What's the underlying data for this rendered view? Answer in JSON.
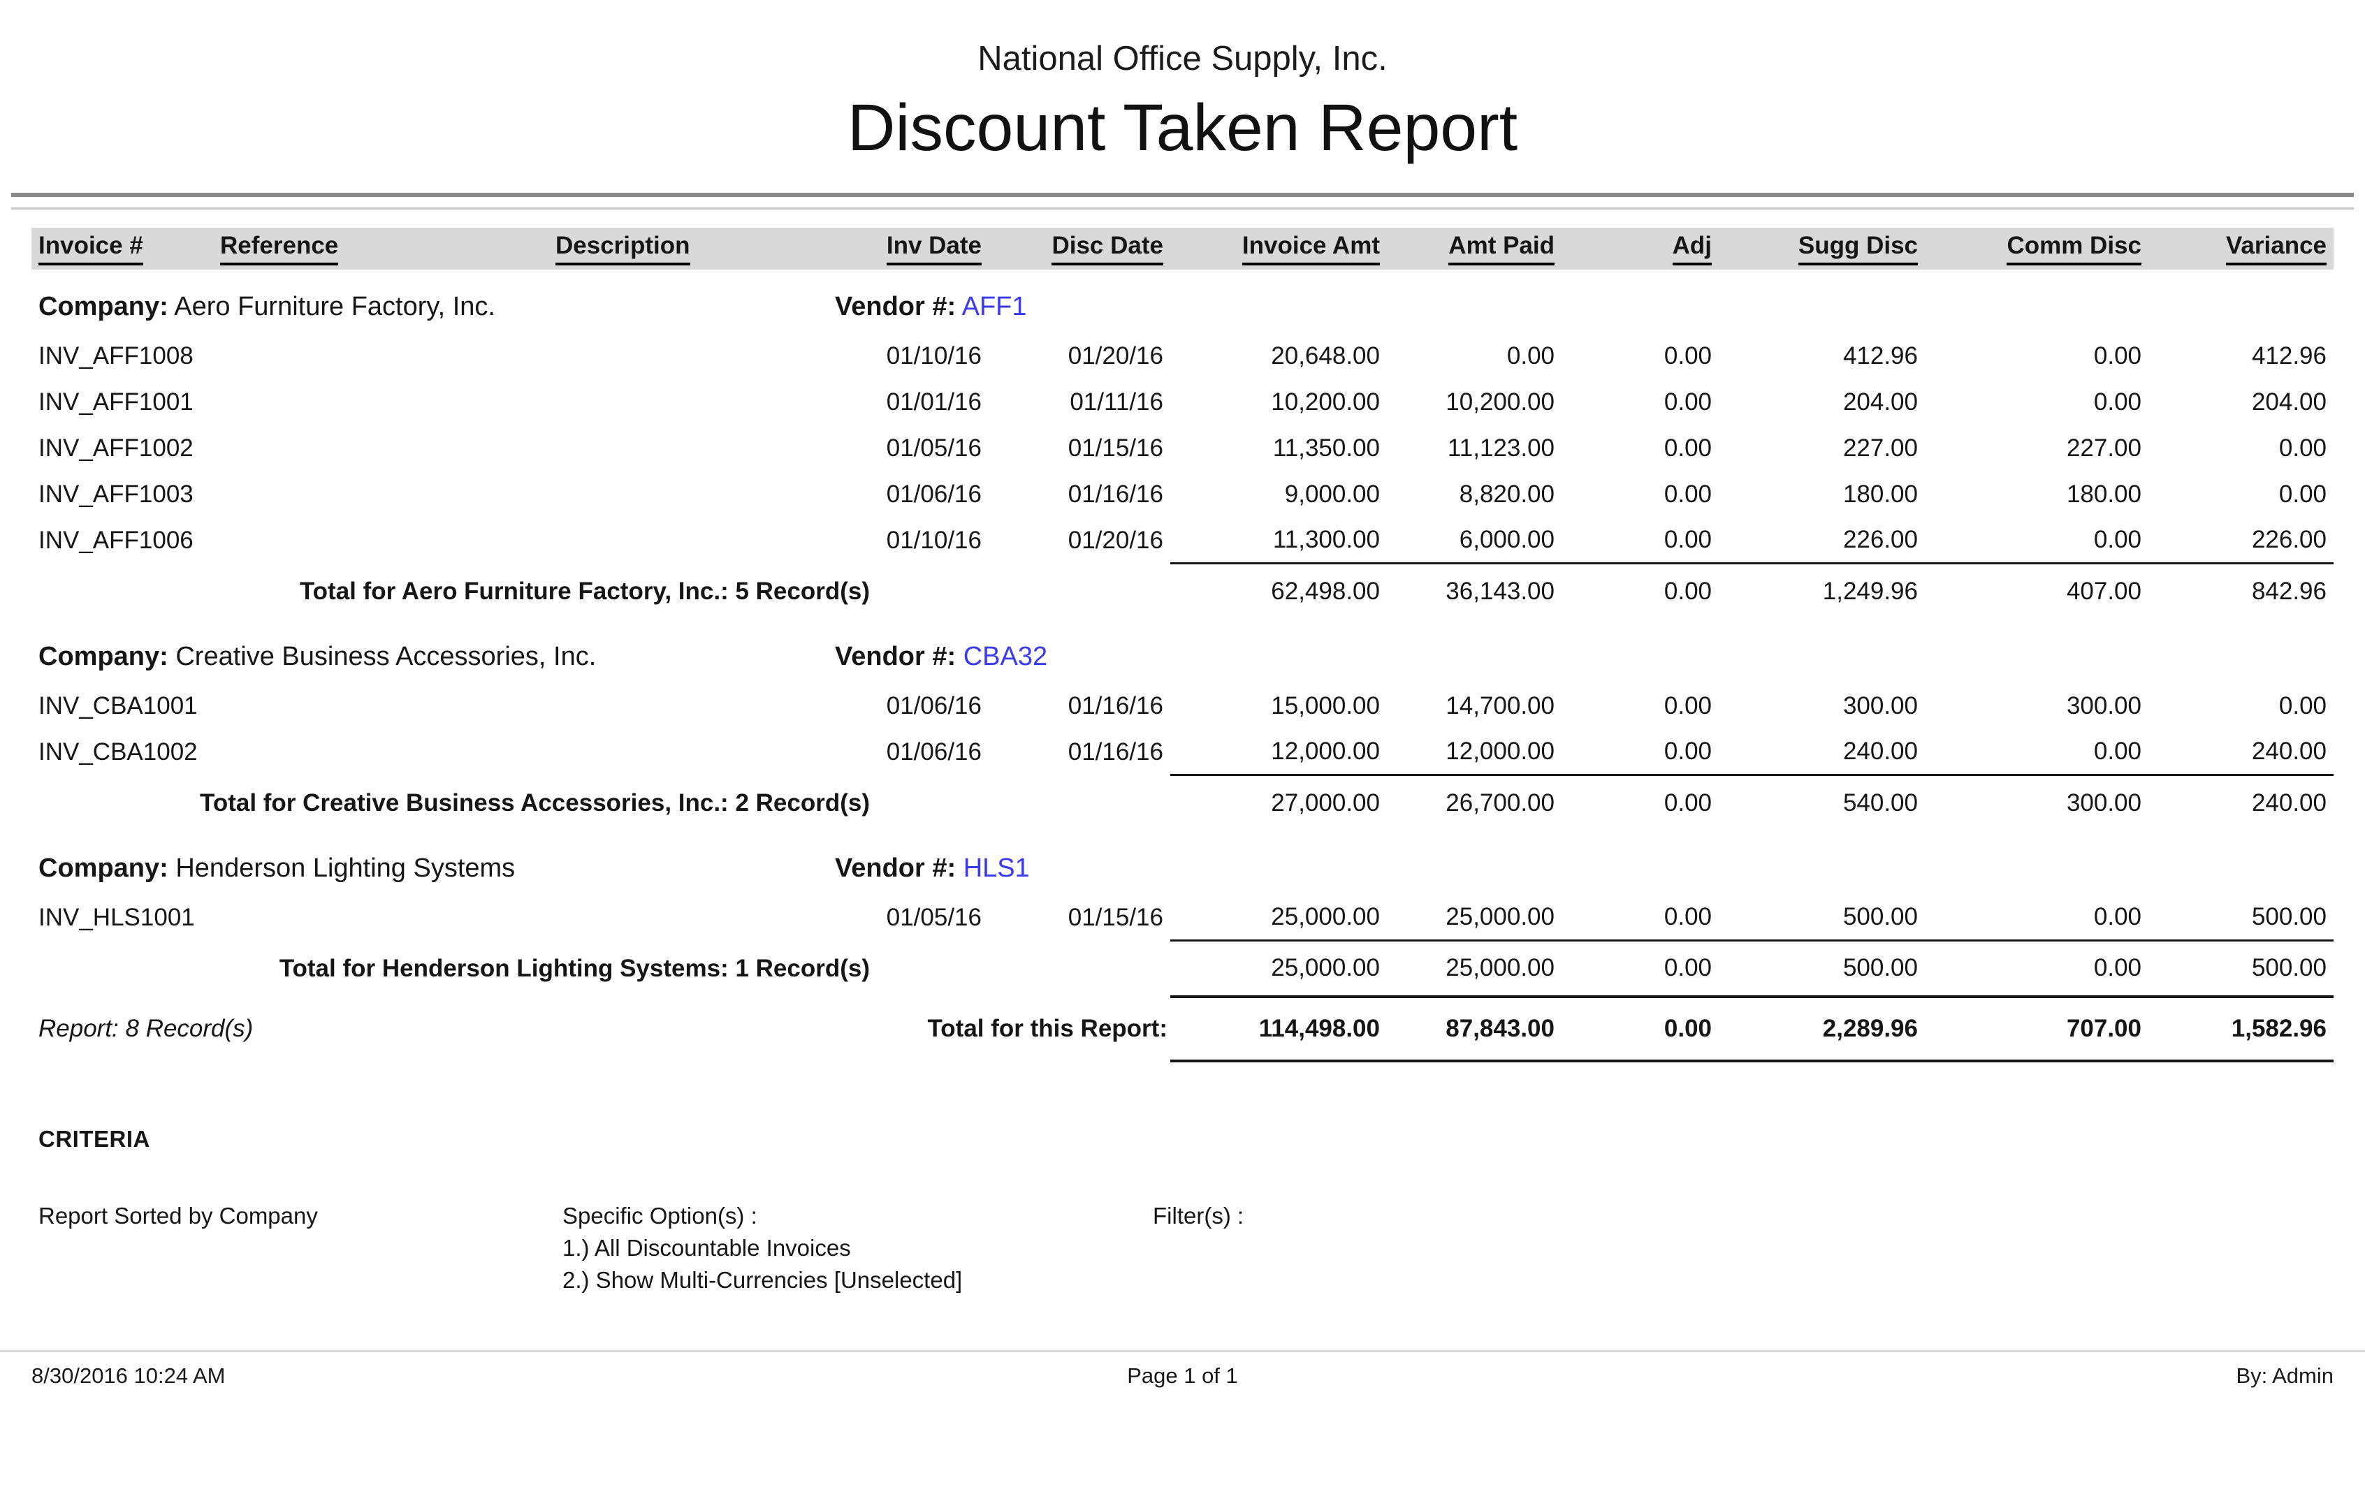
{
  "page": {
    "org_name": "National Office Supply, Inc.",
    "report_title": "Discount Taken Report"
  },
  "colors": {
    "header_band": "#d9d9d9",
    "vendor_link": "#3a3af0"
  },
  "table": {
    "columns": [
      "Invoice #",
      "Reference",
      "Description",
      "Inv Date",
      "Disc Date",
      "Invoice Amt",
      "Amt Paid",
      "Adj",
      "Sugg Disc",
      "Comm Disc",
      "Variance"
    ],
    "groups": [
      {
        "company_label": "Company:",
        "company_name": "Aero Furniture Factory, Inc.",
        "vendor_label": "Vendor #:",
        "vendor_code": "AFF1",
        "rows": [
          {
            "invoice": "INV_AFF1008",
            "reference": "",
            "description": "",
            "inv_date": "01/10/16",
            "disc_date": "01/20/16",
            "invoice_amt": "20,648.00",
            "amt_paid": "0.00",
            "adj": "0.00",
            "sugg_disc": "412.96",
            "comm_disc": "0.00",
            "variance": "412.96"
          },
          {
            "invoice": "INV_AFF1001",
            "reference": "",
            "description": "",
            "inv_date": "01/01/16",
            "disc_date": "01/11/16",
            "invoice_amt": "10,200.00",
            "amt_paid": "10,200.00",
            "adj": "0.00",
            "sugg_disc": "204.00",
            "comm_disc": "0.00",
            "variance": "204.00"
          },
          {
            "invoice": "INV_AFF1002",
            "reference": "",
            "description": "",
            "inv_date": "01/05/16",
            "disc_date": "01/15/16",
            "invoice_amt": "11,350.00",
            "amt_paid": "11,123.00",
            "adj": "0.00",
            "sugg_disc": "227.00",
            "comm_disc": "227.00",
            "variance": "0.00"
          },
          {
            "invoice": "INV_AFF1003",
            "reference": "",
            "description": "",
            "inv_date": "01/06/16",
            "disc_date": "01/16/16",
            "invoice_amt": "9,000.00",
            "amt_paid": "8,820.00",
            "adj": "0.00",
            "sugg_disc": "180.00",
            "comm_disc": "180.00",
            "variance": "0.00"
          },
          {
            "invoice": "INV_AFF1006",
            "reference": "",
            "description": "",
            "inv_date": "01/10/16",
            "disc_date": "01/20/16",
            "invoice_amt": "11,300.00",
            "amt_paid": "6,000.00",
            "adj": "0.00",
            "sugg_disc": "226.00",
            "comm_disc": "0.00",
            "variance": "226.00"
          }
        ],
        "total_label": "Total for Aero Furniture Factory, Inc.: 5 Record(s)",
        "totals": {
          "invoice_amt": "62,498.00",
          "amt_paid": "36,143.00",
          "adj": "0.00",
          "sugg_disc": "1,249.96",
          "comm_disc": "407.00",
          "variance": "842.96"
        }
      },
      {
        "company_label": "Company:",
        "company_name": "Creative Business Accessories, Inc.",
        "vendor_label": "Vendor #:",
        "vendor_code": "CBA32",
        "rows": [
          {
            "invoice": "INV_CBA1001",
            "reference": "",
            "description": "",
            "inv_date": "01/06/16",
            "disc_date": "01/16/16",
            "invoice_amt": "15,000.00",
            "amt_paid": "14,700.00",
            "adj": "0.00",
            "sugg_disc": "300.00",
            "comm_disc": "300.00",
            "variance": "0.00"
          },
          {
            "invoice": "INV_CBA1002",
            "reference": "",
            "description": "",
            "inv_date": "01/06/16",
            "disc_date": "01/16/16",
            "invoice_amt": "12,000.00",
            "amt_paid": "12,000.00",
            "adj": "0.00",
            "sugg_disc": "240.00",
            "comm_disc": "0.00",
            "variance": "240.00"
          }
        ],
        "total_label": "Total for Creative Business Accessories, Inc.: 2 Record(s)",
        "totals": {
          "invoice_amt": "27,000.00",
          "amt_paid": "26,700.00",
          "adj": "0.00",
          "sugg_disc": "540.00",
          "comm_disc": "300.00",
          "variance": "240.00"
        }
      },
      {
        "company_label": "Company:",
        "company_name": "Henderson Lighting Systems",
        "vendor_label": "Vendor #:",
        "vendor_code": "HLS1",
        "rows": [
          {
            "invoice": "INV_HLS1001",
            "reference": "",
            "description": "",
            "inv_date": "01/05/16",
            "disc_date": "01/15/16",
            "invoice_amt": "25,000.00",
            "amt_paid": "25,000.00",
            "adj": "0.00",
            "sugg_disc": "500.00",
            "comm_disc": "0.00",
            "variance": "500.00"
          }
        ],
        "total_label": "Total for Henderson Lighting Systems: 1 Record(s)",
        "totals": {
          "invoice_amt": "25,000.00",
          "amt_paid": "25,000.00",
          "adj": "0.00",
          "sugg_disc": "500.00",
          "comm_disc": "0.00",
          "variance": "500.00"
        }
      }
    ],
    "report_summary": {
      "note": "Report: 8 Record(s)",
      "label": "Total for this Report:",
      "totals": {
        "invoice_amt": "114,498.00",
        "amt_paid": "87,843.00",
        "adj": "0.00",
        "sugg_disc": "2,289.96",
        "comm_disc": "707.00",
        "variance": "1,582.96"
      }
    }
  },
  "criteria": {
    "heading": "CRITERIA",
    "sorted_by": "Report Sorted by Company",
    "specific_options_label": "Specific Option(s) :",
    "specific_options": [
      "1.) All Discountable Invoices",
      "2.) Show Multi-Currencies [Unselected]"
    ],
    "filters_label": "Filter(s) :"
  },
  "footer": {
    "timestamp": "8/30/2016 10:24 AM",
    "page_info": "Page 1 of 1",
    "by": "By: Admin"
  }
}
